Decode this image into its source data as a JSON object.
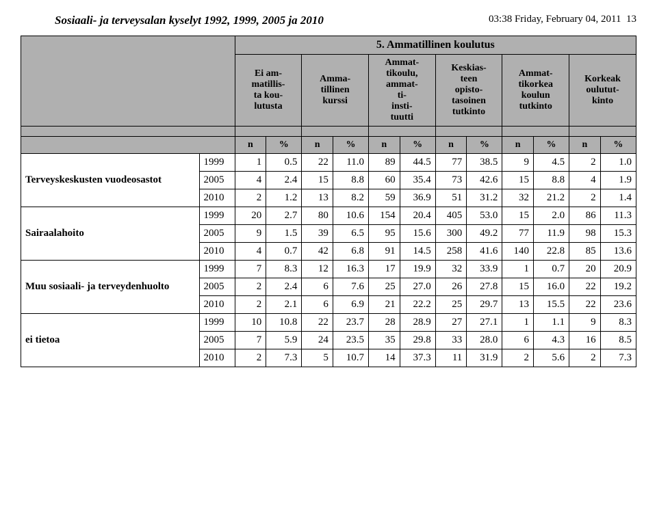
{
  "meta": {
    "title": "Sosiaali- ja terveysalan kyselyt 1992, 1999, 2005 ja 2010",
    "timestamp": "03:38  Friday, February 04, 2011",
    "page": "13",
    "title_fontsize": 17,
    "timestamp_fontsize": 15,
    "font_family": "Times New Roman"
  },
  "colors": {
    "header_bg": "#b0b0b0",
    "border": "#000000",
    "text": "#000000",
    "page_bg": "#ffffff"
  },
  "table": {
    "type": "table",
    "super_header": "5. Ammatillinen koulutus",
    "col_headers": [
      "Ei am-\nmatillis-\nta kou-\nlutusta",
      "Amma-\ntillinen\nkurssi",
      "Ammat-\ntikoulu,\nammat-\nti-\ninsti-\ntuutti",
      "Keskias-\nteen\nopisto-\ntasoinen\ntutkinto",
      "Ammat-\ntikorkea\nkoulun\ntutkinto",
      "Korkeak\noulutut-\nkinto"
    ],
    "sub_headers": [
      "n",
      "%",
      "n",
      "%",
      "n",
      "%",
      "n",
      "%",
      "n",
      "%",
      "n",
      "%"
    ],
    "column_widths": {
      "stub": 240,
      "year": 48,
      "n": 42,
      "pct": 48
    },
    "groups": [
      {
        "label": "Terveyskeskusten vuodeosastot",
        "rows": [
          {
            "year": "1999",
            "cells": [
              "1",
              "0.5",
              "22",
              "11.0",
              "89",
              "44.5",
              "77",
              "38.5",
              "9",
              "4.5",
              "2",
              "1.0"
            ]
          },
          {
            "year": "2005",
            "cells": [
              "4",
              "2.4",
              "15",
              "8.8",
              "60",
              "35.4",
              "73",
              "42.6",
              "15",
              "8.8",
              "4",
              "1.9"
            ]
          },
          {
            "year": "2010",
            "cells": [
              "2",
              "1.2",
              "13",
              "8.2",
              "59",
              "36.9",
              "51",
              "31.2",
              "32",
              "21.2",
              "2",
              "1.4"
            ]
          }
        ]
      },
      {
        "label": "Sairaalahoito",
        "rows": [
          {
            "year": "1999",
            "cells": [
              "20",
              "2.7",
              "80",
              "10.6",
              "154",
              "20.4",
              "405",
              "53.0",
              "15",
              "2.0",
              "86",
              "11.3"
            ]
          },
          {
            "year": "2005",
            "cells": [
              "9",
              "1.5",
              "39",
              "6.5",
              "95",
              "15.6",
              "300",
              "49.2",
              "77",
              "11.9",
              "98",
              "15.3"
            ]
          },
          {
            "year": "2010",
            "cells": [
              "4",
              "0.7",
              "42",
              "6.8",
              "91",
              "14.5",
              "258",
              "41.6",
              "140",
              "22.8",
              "85",
              "13.6"
            ]
          }
        ]
      },
      {
        "label": "Muu sosiaali- ja terveydenhuolto",
        "rows": [
          {
            "year": "1999",
            "cells": [
              "7",
              "8.3",
              "12",
              "16.3",
              "17",
              "19.9",
              "32",
              "33.9",
              "1",
              "0.7",
              "20",
              "20.9"
            ]
          },
          {
            "year": "2005",
            "cells": [
              "2",
              "2.4",
              "6",
              "7.6",
              "25",
              "27.0",
              "26",
              "27.8",
              "15",
              "16.0",
              "22",
              "19.2"
            ]
          },
          {
            "year": "2010",
            "cells": [
              "2",
              "2.1",
              "6",
              "6.9",
              "21",
              "22.2",
              "25",
              "29.7",
              "13",
              "15.5",
              "22",
              "23.6"
            ]
          }
        ]
      },
      {
        "label": "ei tietoa",
        "rows": [
          {
            "year": "1999",
            "cells": [
              "10",
              "10.8",
              "22",
              "23.7",
              "28",
              "28.9",
              "27",
              "27.1",
              "1",
              "1.1",
              "9",
              "8.3"
            ]
          },
          {
            "year": "2005",
            "cells": [
              "7",
              "5.9",
              "24",
              "23.5",
              "35",
              "29.8",
              "33",
              "28.0",
              "6",
              "4.3",
              "16",
              "8.5"
            ]
          },
          {
            "year": "2010",
            "cells": [
              "2",
              "7.3",
              "5",
              "10.7",
              "14",
              "37.3",
              "11",
              "31.9",
              "2",
              "5.6",
              "2",
              "7.3"
            ]
          }
        ]
      }
    ]
  }
}
